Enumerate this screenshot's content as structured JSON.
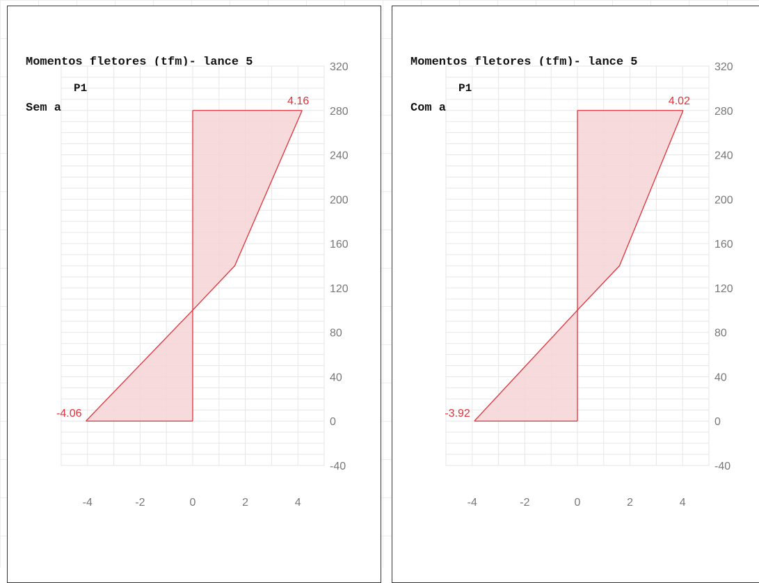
{
  "charts": [
    {
      "title_line1": "Momentos fletores (tfm)- lance 5",
      "title_line2": "Sem aplicação de redução",
      "chart_data": {
        "type": "area",
        "series_label": "P1",
        "xlim": [
          -5,
          5
        ],
        "ylim": [
          -40,
          320
        ],
        "x_ticks": [
          -4,
          -2,
          0,
          2,
          4
        ],
        "y_ticks": [
          -40,
          0,
          40,
          80,
          120,
          160,
          200,
          240,
          280,
          320
        ],
        "grid": true,
        "points": [
          [
            -4.06,
            0
          ],
          [
            0,
            100
          ],
          [
            1.6,
            140
          ],
          [
            4.16,
            280
          ]
        ],
        "annotations": [
          {
            "text": "4.16",
            "x": 4.16,
            "y": 280
          },
          {
            "text": "-4.06",
            "x": -4.06,
            "y": 0
          }
        ]
      }
    },
    {
      "title_line1": "Momentos fletores (tfm)- lance 5",
      "title_line2": "Com aplicação de redução",
      "chart_data": {
        "type": "area",
        "series_label": "P1",
        "xlim": [
          -5,
          5
        ],
        "ylim": [
          -40,
          320
        ],
        "x_ticks": [
          -4,
          -2,
          0,
          2,
          4
        ],
        "y_ticks": [
          -40,
          0,
          40,
          80,
          120,
          160,
          200,
          240,
          280,
          320
        ],
        "grid": true,
        "points": [
          [
            -3.92,
            0
          ],
          [
            0,
            100
          ],
          [
            1.6,
            140
          ],
          [
            4.02,
            280
          ]
        ],
        "annotations": [
          {
            "text": "4.02",
            "x": 4.02,
            "y": 280
          },
          {
            "text": "-3.92",
            "x": -3.92,
            "y": 0
          }
        ]
      }
    }
  ],
  "colors": {
    "line": "#e0303a",
    "fill": "#f6d3d6",
    "label": "#e0303a",
    "tick": "#777777",
    "grid": "#e6e6e6",
    "axis": "#cccccc"
  }
}
